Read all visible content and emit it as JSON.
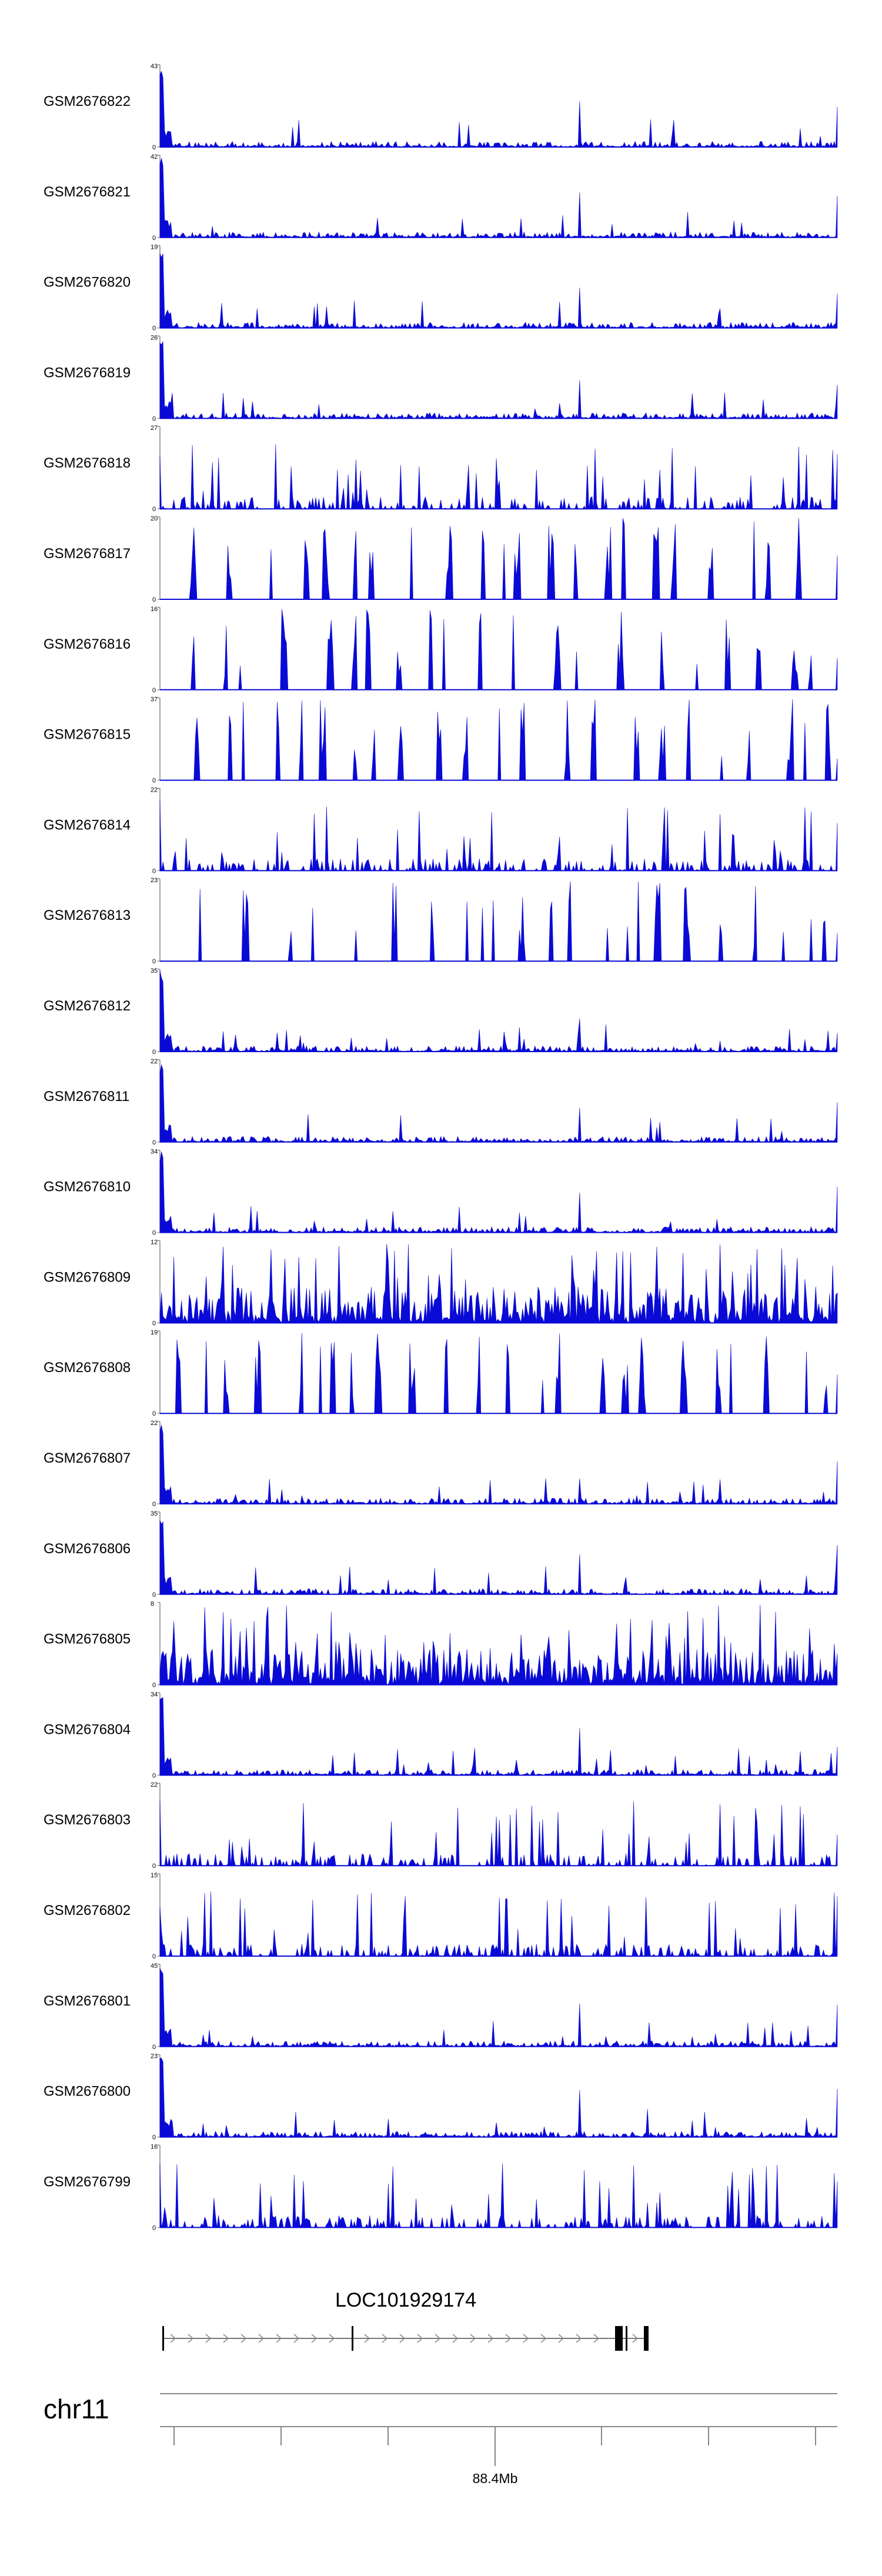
{
  "chart_data": {
    "type": "area",
    "colors": {
      "signal": "#0a0ad6",
      "axis": "#777777",
      "gene": "#000000"
    },
    "chromosome": "chr11",
    "position_label": "88.4Mb",
    "gene": {
      "name": "LOC101929174",
      "strand": "+"
    },
    "tracks": [
      {
        "name": "GSM2676822",
        "ymax": "43",
        "ymin": "0",
        "pattern": "spike"
      },
      {
        "name": "GSM2676821",
        "ymax": "42",
        "ymin": "0",
        "pattern": "spike"
      },
      {
        "name": "GSM2676820",
        "ymax": "19",
        "ymin": "0",
        "pattern": "spike"
      },
      {
        "name": "GSM2676819",
        "ymax": "26",
        "ymin": "0",
        "pattern": "spike"
      },
      {
        "name": "GSM2676818",
        "ymax": "27",
        "ymin": "0",
        "pattern": "moderate"
      },
      {
        "name": "GSM2676817",
        "ymax": "20",
        "ymin": "0",
        "pattern": "sparse"
      },
      {
        "name": "GSM2676816",
        "ymax": "16",
        "ymin": "0",
        "pattern": "sparse"
      },
      {
        "name": "GSM2676815",
        "ymax": "37",
        "ymin": "0",
        "pattern": "sparse"
      },
      {
        "name": "GSM2676814",
        "ymax": "22",
        "ymin": "0",
        "pattern": "moderate"
      },
      {
        "name": "GSM2676813",
        "ymax": "23",
        "ymin": "0",
        "pattern": "sparse"
      },
      {
        "name": "GSM2676812",
        "ymax": "35",
        "ymin": "0",
        "pattern": "spike"
      },
      {
        "name": "GSM2676811",
        "ymax": "22",
        "ymin": "0",
        "pattern": "spike"
      },
      {
        "name": "GSM2676810",
        "ymax": "34",
        "ymin": "0",
        "pattern": "spike"
      },
      {
        "name": "GSM2676809",
        "ymax": "12",
        "ymin": "0",
        "pattern": "dense"
      },
      {
        "name": "GSM2676808",
        "ymax": "19",
        "ymin": "0",
        "pattern": "sparse"
      },
      {
        "name": "GSM2676807",
        "ymax": "22",
        "ymin": "0",
        "pattern": "spike"
      },
      {
        "name": "GSM2676806",
        "ymax": "35",
        "ymin": "0",
        "pattern": "spike"
      },
      {
        "name": "GSM2676805",
        "ymax": "8",
        "ymin": "0",
        "pattern": "dense"
      },
      {
        "name": "GSM2676804",
        "ymax": "34",
        "ymin": "0",
        "pattern": "spike"
      },
      {
        "name": "GSM2676803",
        "ymax": "22",
        "ymin": "0",
        "pattern": "moderate"
      },
      {
        "name": "GSM2676802",
        "ymax": "15",
        "ymin": "0",
        "pattern": "moderate"
      },
      {
        "name": "GSM2676801",
        "ymax": "45",
        "ymin": "0",
        "pattern": "spike"
      },
      {
        "name": "GSM2676800",
        "ymax": "23",
        "ymin": "0",
        "pattern": "spike"
      },
      {
        "name": "GSM2676799",
        "ymax": "16",
        "ymin": "0",
        "pattern": "moderate"
      }
    ]
  }
}
